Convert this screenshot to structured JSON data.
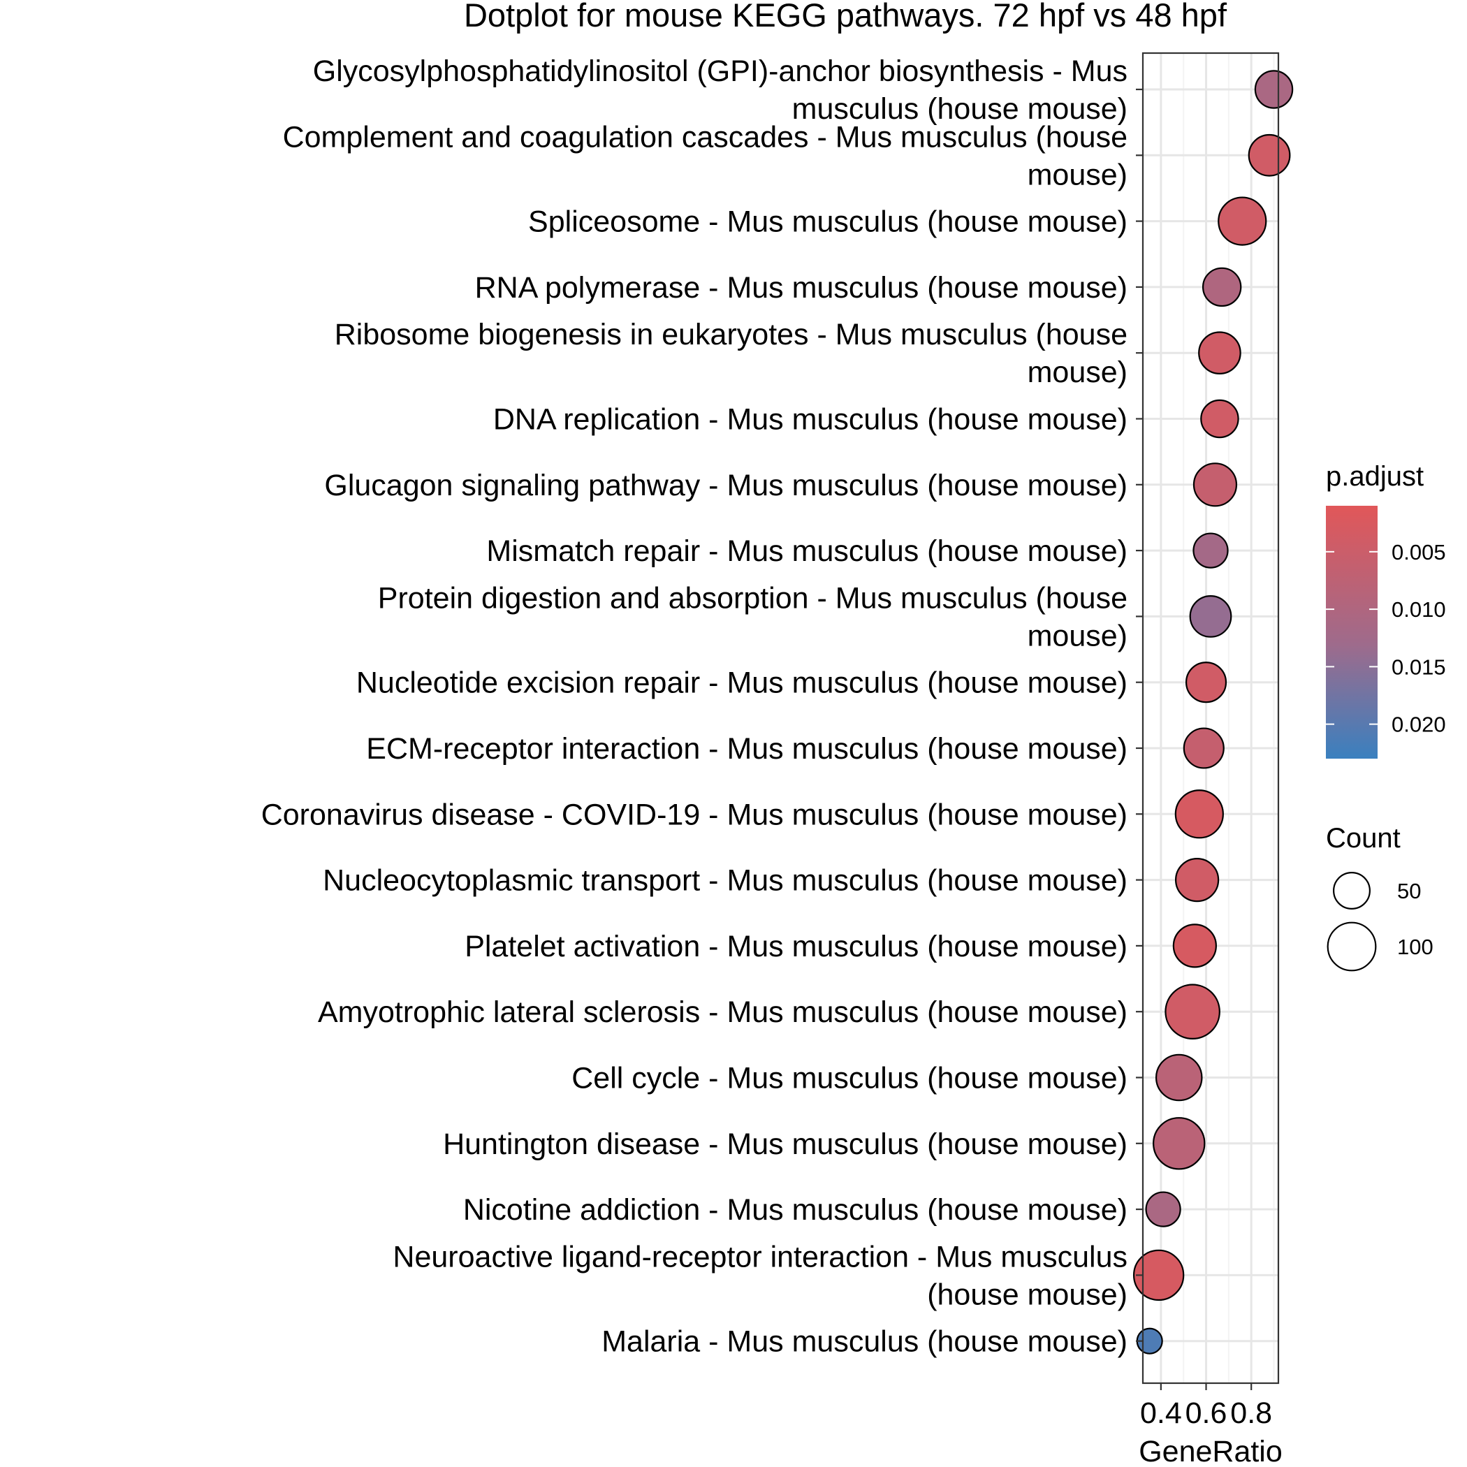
{
  "chart_data": {
    "type": "scatter",
    "title": "Dotplot for mouse KEGG pathways. 72 hpf vs 48 hpf",
    "xlabel": "GeneRatio",
    "ylabel": "",
    "xlim": [
      0.32,
      0.92
    ],
    "xticks": [
      0.4,
      0.6,
      0.8
    ],
    "xtick_labels": [
      "0.4",
      "0.6",
      "0.8"
    ],
    "grid": true,
    "categories": [
      "Glycosylphosphatidylinositol (GPI)-anchor biosynthesis - Mus musculus (house mouse)",
      "Complement and coagulation cascades - Mus musculus (house mouse)",
      "Spliceosome - Mus musculus (house mouse)",
      "RNA polymerase - Mus musculus (house mouse)",
      "Ribosome biogenesis in eukaryotes - Mus musculus (house mouse)",
      "DNA replication - Mus musculus (house mouse)",
      "Glucagon signaling pathway - Mus musculus (house mouse)",
      "Mismatch repair - Mus musculus (house mouse)",
      "Protein digestion and absorption - Mus musculus (house mouse)",
      "Nucleotide excision repair - Mus musculus (house mouse)",
      "ECM-receptor interaction - Mus musculus (house mouse)",
      "Coronavirus disease - COVID-19 - Mus musculus (house mouse)",
      "Nucleocytoplasmic transport - Mus musculus (house mouse)",
      "Platelet activation - Mus musculus (house mouse)",
      "Amyotrophic lateral sclerosis - Mus musculus (house mouse)",
      "Cell cycle - Mus musculus (house mouse)",
      "Huntington disease - Mus musculus (house mouse)",
      "Nicotine addiction - Mus musculus (house mouse)",
      "Neuroactive ligand-receptor interaction - Mus musculus (house mouse)",
      "Malaria - Mus musculus (house mouse)"
    ],
    "category_lines": [
      [
        "Glycosylphosphatidylinositol (GPI)-anchor biosynthesis - Mus",
        "musculus (house mouse)"
      ],
      [
        "Complement and coagulation cascades - Mus musculus (house",
        "mouse)"
      ],
      [
        "Spliceosome - Mus musculus (house mouse)"
      ],
      [
        "RNA polymerase - Mus musculus (house mouse)"
      ],
      [
        "Ribosome biogenesis in eukaryotes - Mus musculus (house",
        "mouse)"
      ],
      [
        "DNA replication - Mus musculus (house mouse)"
      ],
      [
        "Glucagon signaling pathway - Mus musculus (house mouse)"
      ],
      [
        "Mismatch repair - Mus musculus (house mouse)"
      ],
      [
        "Protein digestion and absorption - Mus musculus (house",
        "mouse)"
      ],
      [
        "Nucleotide excision repair - Mus musculus (house mouse)"
      ],
      [
        "ECM-receptor interaction - Mus musculus (house mouse)"
      ],
      [
        "Coronavirus disease - COVID-19 - Mus musculus (house mouse)"
      ],
      [
        "Nucleocytoplasmic transport - Mus musculus (house mouse)"
      ],
      [
        "Platelet activation - Mus musculus (house mouse)"
      ],
      [
        "Amyotrophic lateral sclerosis - Mus musculus (house mouse)"
      ],
      [
        "Cell cycle - Mus musculus (house mouse)"
      ],
      [
        "Huntington disease - Mus musculus (house mouse)"
      ],
      [
        "Nicotine addiction - Mus musculus (house mouse)"
      ],
      [
        "Neuroactive ligand-receptor interaction - Mus musculus",
        "(house mouse)"
      ],
      [
        "Malaria - Mus musculus (house mouse)"
      ]
    ],
    "x": [
      0.9,
      0.88,
      0.76,
      0.67,
      0.66,
      0.66,
      0.64,
      0.62,
      0.62,
      0.6,
      0.59,
      0.57,
      0.56,
      0.55,
      0.54,
      0.48,
      0.48,
      0.41,
      0.39,
      0.35
    ],
    "count": [
      40,
      52,
      78,
      42,
      54,
      40,
      58,
      32,
      52,
      48,
      48,
      78,
      58,
      58,
      110,
      70,
      95,
      32,
      88,
      15
    ],
    "p_adjust": [
      0.011,
      0.004,
      0.004,
      0.01,
      0.004,
      0.004,
      0.006,
      0.012,
      0.014,
      0.004,
      0.006,
      0.003,
      0.004,
      0.003,
      0.004,
      0.008,
      0.008,
      0.011,
      0.003,
      0.021
    ],
    "color_legend": {
      "title": "p.adjust",
      "ticks": [
        0.005,
        0.01,
        0.015,
        0.02
      ],
      "tick_labels": [
        "0.005",
        "0.010",
        "0.015",
        "0.020"
      ],
      "range": [
        0.001,
        0.023
      ],
      "low_color": "#E15759",
      "mid_color": "#9E6B8C",
      "high_color": "#3A80BF"
    },
    "size_legend": {
      "title": "Count",
      "values": [
        50,
        100
      ],
      "labels": [
        "50",
        "100"
      ]
    },
    "legend_placement": "right"
  }
}
